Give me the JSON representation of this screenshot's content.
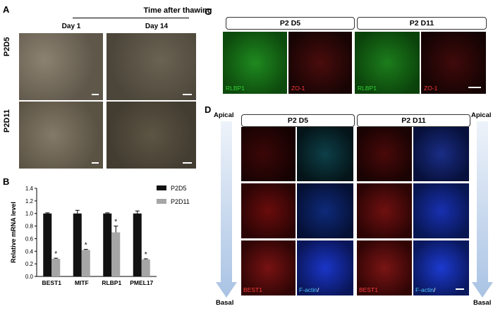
{
  "panels": {
    "a": "A",
    "b": "B",
    "c": "C",
    "d": "D"
  },
  "panel_a": {
    "header": "Time after thawing",
    "cols": [
      "Day 1",
      "Day 14"
    ],
    "rows": [
      "P2D5",
      "P2D11"
    ]
  },
  "panel_c": {
    "headers": [
      "P2 D5",
      "P2 D11"
    ],
    "channels": [
      "RLBP1",
      "ZO-1",
      "RLBP1",
      "ZO-1"
    ]
  },
  "panel_d": {
    "headers": [
      "P2 D5",
      "P2 D11"
    ],
    "apical": "Apical",
    "basal": "Basal",
    "best_label": "BEST1",
    "factin_label": "F-actin",
    "slash": "/"
  },
  "colors": {
    "p2d5_bar": "#111111",
    "p2d11_bar": "#a6a6a6",
    "green_channel": "#1a8c1a",
    "red_channel": "#b01010",
    "blue_channel": "#1a2fb8",
    "cyan_label": "#4fc3f7",
    "arrow_gradient": "#b7cde8"
  },
  "chart_data": {
    "type": "bar",
    "categories": [
      "BEST1",
      "MITF",
      "RLBP1",
      "PMEL17"
    ],
    "series": [
      {
        "name": "P2D5",
        "values": [
          1.0,
          1.0,
          1.0,
          1.0
        ],
        "errors": [
          0.01,
          0.05,
          0.01,
          0.04
        ]
      },
      {
        "name": "P2D11",
        "values": [
          0.28,
          0.42,
          0.7,
          0.27
        ],
        "errors": [
          0.01,
          0.01,
          0.1,
          0.01
        ]
      }
    ],
    "significance": [
      "*",
      "*",
      "*",
      "*"
    ],
    "ylabel": "Relative mRNA level",
    "ylim": [
      0,
      1.4
    ],
    "yticks": [
      "0.0",
      "0.2",
      "0.4",
      "0.6",
      "0.8",
      "1.0",
      "1.2",
      "1.4"
    ],
    "legend_position": "top-right"
  }
}
